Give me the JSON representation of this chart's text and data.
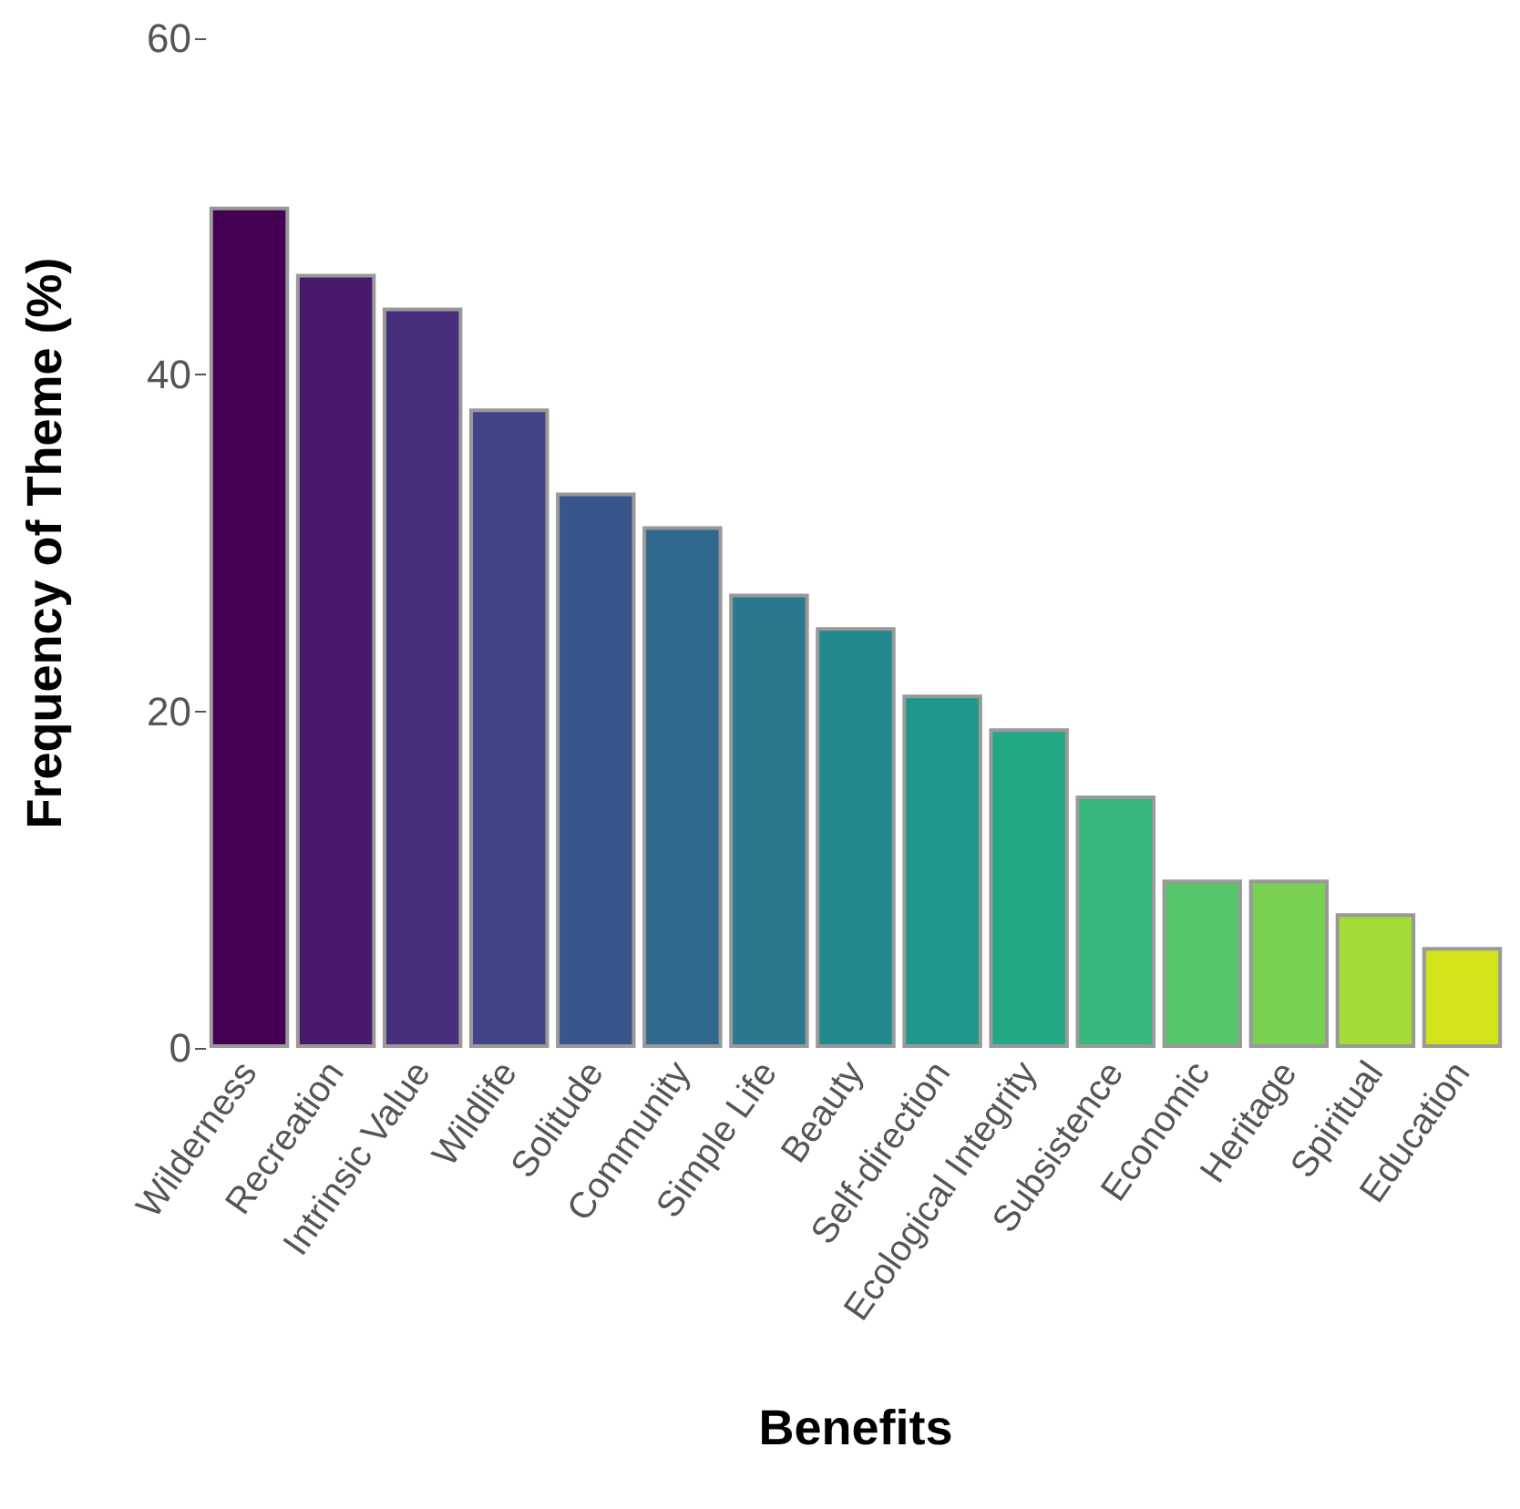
{
  "chart_data": {
    "type": "bar",
    "xlabel": "Benefits",
    "ylabel": "Frequency of Theme (%)",
    "categories": [
      "Wilderness",
      "Recreation",
      "Intrinsic Value",
      "Wildlife",
      "Solitude",
      "Community",
      "Simple Life",
      "Beauty",
      "Self-direction",
      "Ecological Integrity",
      "Subsistence",
      "Economic",
      "Heritage",
      "Spiritual",
      "Education"
    ],
    "values": [
      50,
      46,
      44,
      38,
      33,
      31,
      27,
      25,
      21,
      19,
      15,
      10,
      10,
      8,
      6
    ],
    "colors": [
      "#440154",
      "#481a6c",
      "#472f7d",
      "#414487",
      "#39568c",
      "#31688e",
      "#2a788e",
      "#23888e",
      "#1f988b",
      "#22a884",
      "#35b779",
      "#54c568",
      "#7ad151",
      "#a5db36",
      "#d2e21b"
    ],
    "ylim": [
      0,
      60
    ],
    "yticks": [
      0,
      20,
      40,
      60
    ],
    "grid": false
  }
}
